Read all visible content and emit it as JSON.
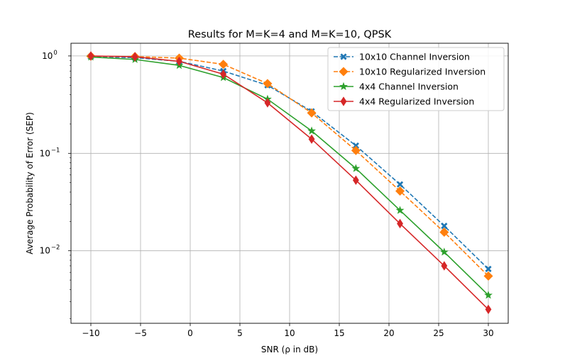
{
  "chart_data": {
    "type": "line",
    "title": "Results for M=K=4 and M=K=10, QPSK",
    "xlabel": "SNR (ρ in dB)",
    "ylabel": "Average Probability of Error (SEP)",
    "xlim": [
      -12.0,
      32.0
    ],
    "ylim": [
      0.0018,
      1.35
    ],
    "y_scale": "log",
    "grid": true,
    "legend_position": "top-right",
    "x_ticks": [
      -10,
      -5,
      0,
      5,
      10,
      15,
      20,
      25,
      30
    ],
    "x_tick_labels": [
      "−10",
      "−5",
      "0",
      "5",
      "10",
      "15",
      "20",
      "25",
      "30"
    ],
    "y_ticks": [
      1,
      0.1,
      0.01
    ],
    "y_tick_labels": [
      {
        "base": "10",
        "exp": "0"
      },
      {
        "base": "10",
        "exp": "−1"
      },
      {
        "base": "10",
        "exp": "−2"
      }
    ],
    "x": [
      -10,
      -5.56,
      -1.11,
      3.33,
      7.78,
      12.22,
      16.67,
      21.11,
      25.56,
      30
    ],
    "series": [
      {
        "name": "10x10 Channel Inversion",
        "color": "#1f77b4",
        "line_style": "dashed",
        "marker": "x-filled",
        "values": [
          0.985,
          0.96,
          0.88,
          0.7,
          0.5,
          0.27,
          0.12,
          0.048,
          0.018,
          0.0065
        ]
      },
      {
        "name": "10x10 Regularized Inversion",
        "color": "#ff7f0e",
        "line_style": "dashed",
        "marker": "diamond",
        "values": [
          0.995,
          0.985,
          0.95,
          0.82,
          0.52,
          0.26,
          0.107,
          0.041,
          0.0155,
          0.0055
        ]
      },
      {
        "name": "4x4 Channel Inversion",
        "color": "#2ca02c",
        "line_style": "solid",
        "marker": "star",
        "values": [
          0.975,
          0.92,
          0.8,
          0.6,
          0.36,
          0.17,
          0.07,
          0.026,
          0.0097,
          0.0035
        ]
      },
      {
        "name": "4x4 Regularized Inversion",
        "color": "#d62728",
        "line_style": "solid",
        "marker": "thin-diamond",
        "values": [
          1.0,
          0.98,
          0.88,
          0.65,
          0.33,
          0.14,
          0.053,
          0.019,
          0.007,
          0.0025
        ]
      }
    ]
  }
}
